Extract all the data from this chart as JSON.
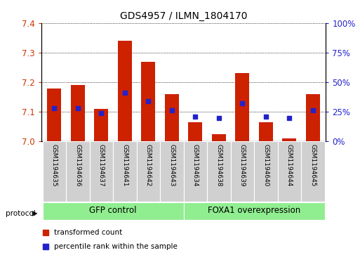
{
  "title": "GDS4957 / ILMN_1804170",
  "samples": [
    "GSM1194635",
    "GSM1194636",
    "GSM1194637",
    "GSM1194641",
    "GSM1194642",
    "GSM1194643",
    "GSM1194634",
    "GSM1194638",
    "GSM1194639",
    "GSM1194640",
    "GSM1194644",
    "GSM1194645"
  ],
  "bar_tops": [
    7.18,
    7.19,
    7.11,
    7.34,
    7.27,
    7.16,
    7.065,
    7.025,
    7.23,
    7.065,
    7.01,
    7.16
  ],
  "bar_bottom": 7.0,
  "blue_dots_y": [
    7.112,
    7.112,
    7.095,
    7.165,
    7.135,
    7.105,
    7.085,
    7.08,
    7.13,
    7.085,
    7.08,
    7.105
  ],
  "ylim": [
    7.0,
    7.4
  ],
  "yticks_left": [
    7.0,
    7.1,
    7.2,
    7.3,
    7.4
  ],
  "yticks_right_vals": [
    0,
    25,
    50,
    75,
    100
  ],
  "yticks_right_labels": [
    "0%",
    "25%",
    "50%",
    "75%",
    "100%"
  ],
  "bar_color": "#cc2200",
  "dot_color": "#2222cc",
  "gfp_group": [
    0,
    1,
    2,
    3,
    4,
    5
  ],
  "foxa1_group": [
    6,
    7,
    8,
    9,
    10,
    11
  ],
  "group_labels": [
    "GFP control",
    "FOXA1 overexpression"
  ],
  "group_color": "#90ee90",
  "protocol_label": "protocol",
  "legend_tc": "transformed count",
  "legend_pct": "percentile rank within the sample",
  "background_color": "#ffffff",
  "tick_color_left": "#cc3300",
  "tick_color_right": "#2222cc",
  "label_bg": "#d0d0d0"
}
